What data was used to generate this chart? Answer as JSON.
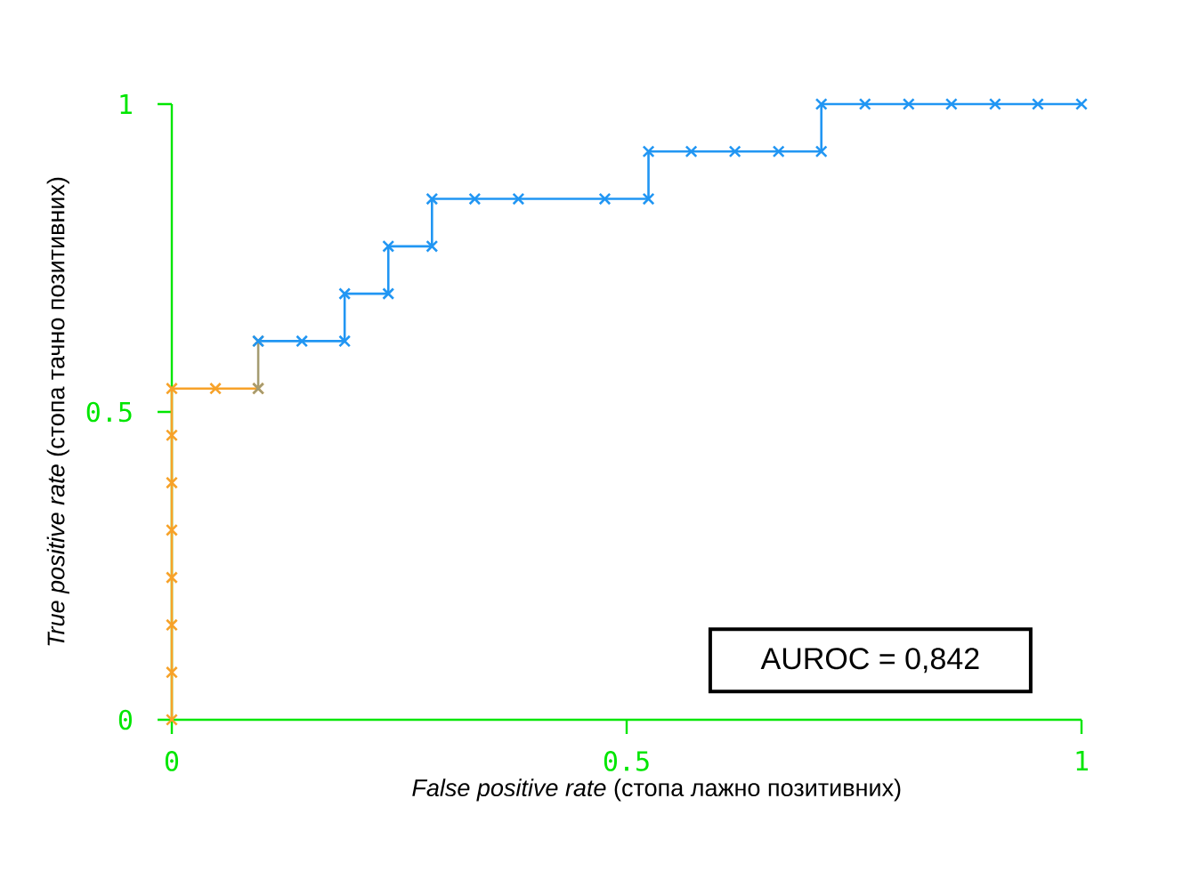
{
  "chart_data": {
    "type": "line",
    "xlabel": "*False positive rate* (стопа лажно позитивних)",
    "ylabel": "*True positive rate* (стопа тачно позитивних)",
    "annotations": [
      "AUROC = 0,842"
    ],
    "xlim": [
      0,
      1
    ],
    "ylim": [
      0,
      1
    ],
    "xticks": [
      0,
      0.5,
      1
    ],
    "yticks": [
      0,
      0.5,
      1
    ],
    "grid": false,
    "marker": "cross",
    "line_style": "solid",
    "series": [
      {
        "color": "#f7a229",
        "x": [
          0,
          0,
          0,
          0,
          0,
          0,
          0,
          0,
          0.048,
          0.095
        ],
        "values": [
          0,
          0.077,
          0.154,
          0.231,
          0.308,
          0.385,
          0.462,
          0.538,
          0.538,
          0.538
        ]
      },
      {
        "color": "#a59c72",
        "x": [
          0.095,
          0.095
        ],
        "values": [
          0.538,
          0.615
        ]
      },
      {
        "color": "#2196f3",
        "x": [
          0.095,
          0.143,
          0.19,
          0.19,
          0.238,
          0.238,
          0.286,
          0.286,
          0.333,
          0.381,
          0.476,
          0.524,
          0.524,
          0.571,
          0.619,
          0.667,
          0.714,
          0.714,
          0.762,
          0.81,
          0.857,
          0.905,
          0.952,
          1
        ],
        "values": [
          0.615,
          0.615,
          0.615,
          0.692,
          0.692,
          0.769,
          0.769,
          0.846,
          0.846,
          0.846,
          0.846,
          0.846,
          0.923,
          0.923,
          0.923,
          0.923,
          0.923,
          1,
          1,
          1,
          1,
          1,
          1,
          1
        ]
      }
    ]
  }
}
